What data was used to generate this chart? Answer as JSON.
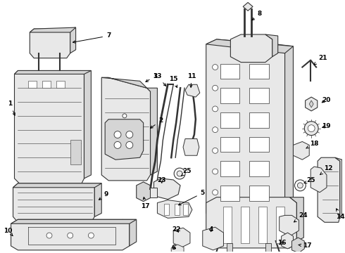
{
  "background_color": "#ffffff",
  "line_color": "#333333",
  "label_color": "#000000",
  "figure_width": 4.9,
  "figure_height": 3.6,
  "dpi": 100,
  "gray_fill": "#e8e8e8",
  "gray_fill2": "#d5d5d5",
  "white_fill": "#ffffff"
}
